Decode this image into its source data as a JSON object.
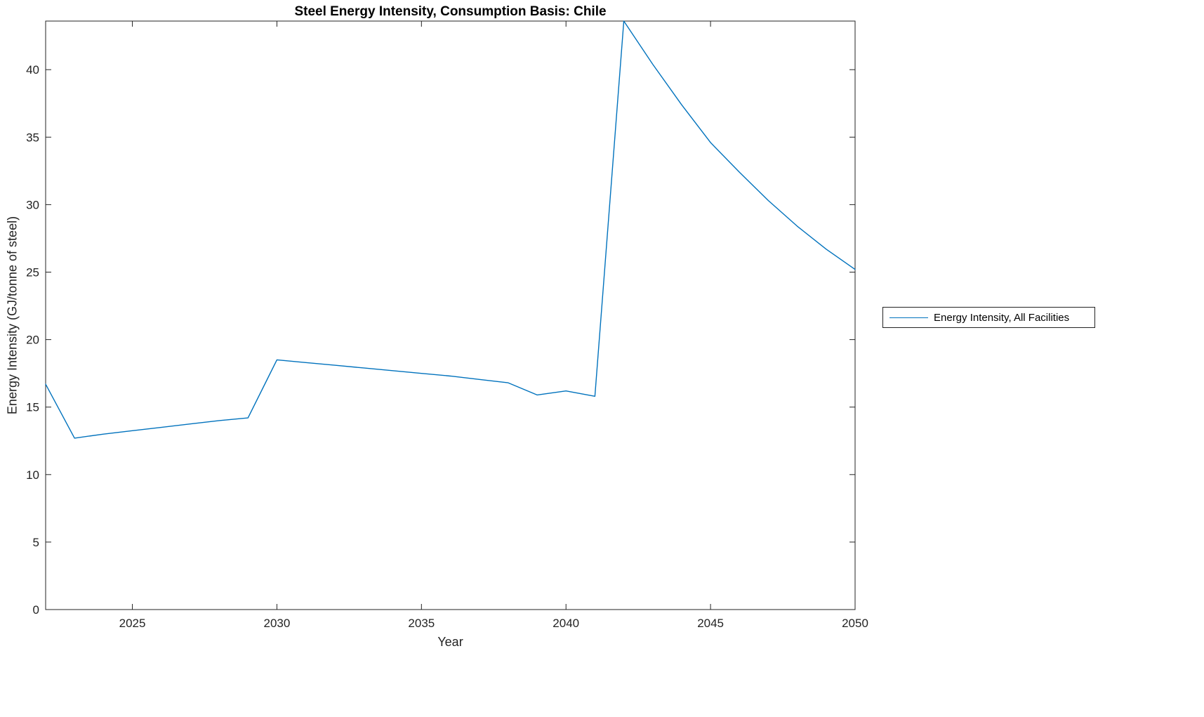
{
  "chart_data": {
    "type": "line",
    "title": "Steel Energy Intensity, Consumption Basis: Chile",
    "xlabel": "Year",
    "ylabel": "Energy Intensity (GJ/tonne of steel)",
    "xlim": [
      2022,
      2050
    ],
    "ylim": [
      0,
      43.6
    ],
    "xticks": [
      2025,
      2030,
      2035,
      2040,
      2045,
      2050
    ],
    "yticks": [
      0,
      5,
      10,
      15,
      20,
      25,
      30,
      35,
      40
    ],
    "grid": false,
    "legend_position": "right-outside",
    "axis_color": "#232323",
    "series": [
      {
        "name": "Energy Intensity, All Facilities",
        "color": "#0072bd",
        "x": [
          2022,
          2023,
          2024,
          2025,
          2026,
          2027,
          2028,
          2029,
          2030,
          2031,
          2032,
          2033,
          2034,
          2035,
          2036,
          2037,
          2038,
          2039,
          2040,
          2041,
          2042,
          2043,
          2044,
          2045,
          2046,
          2047,
          2048,
          2049,
          2050
        ],
        "y": [
          16.7,
          12.7,
          13.0,
          13.25,
          13.5,
          13.75,
          14.0,
          14.2,
          18.5,
          18.3,
          18.1,
          17.9,
          17.7,
          17.5,
          17.3,
          17.05,
          16.8,
          15.9,
          16.2,
          15.8,
          43.6,
          40.4,
          37.4,
          34.6,
          32.4,
          30.3,
          28.4,
          26.7,
          25.2
        ]
      }
    ]
  },
  "legend": {
    "entries": [
      {
        "label": "Energy Intensity, All Facilities"
      }
    ]
  }
}
